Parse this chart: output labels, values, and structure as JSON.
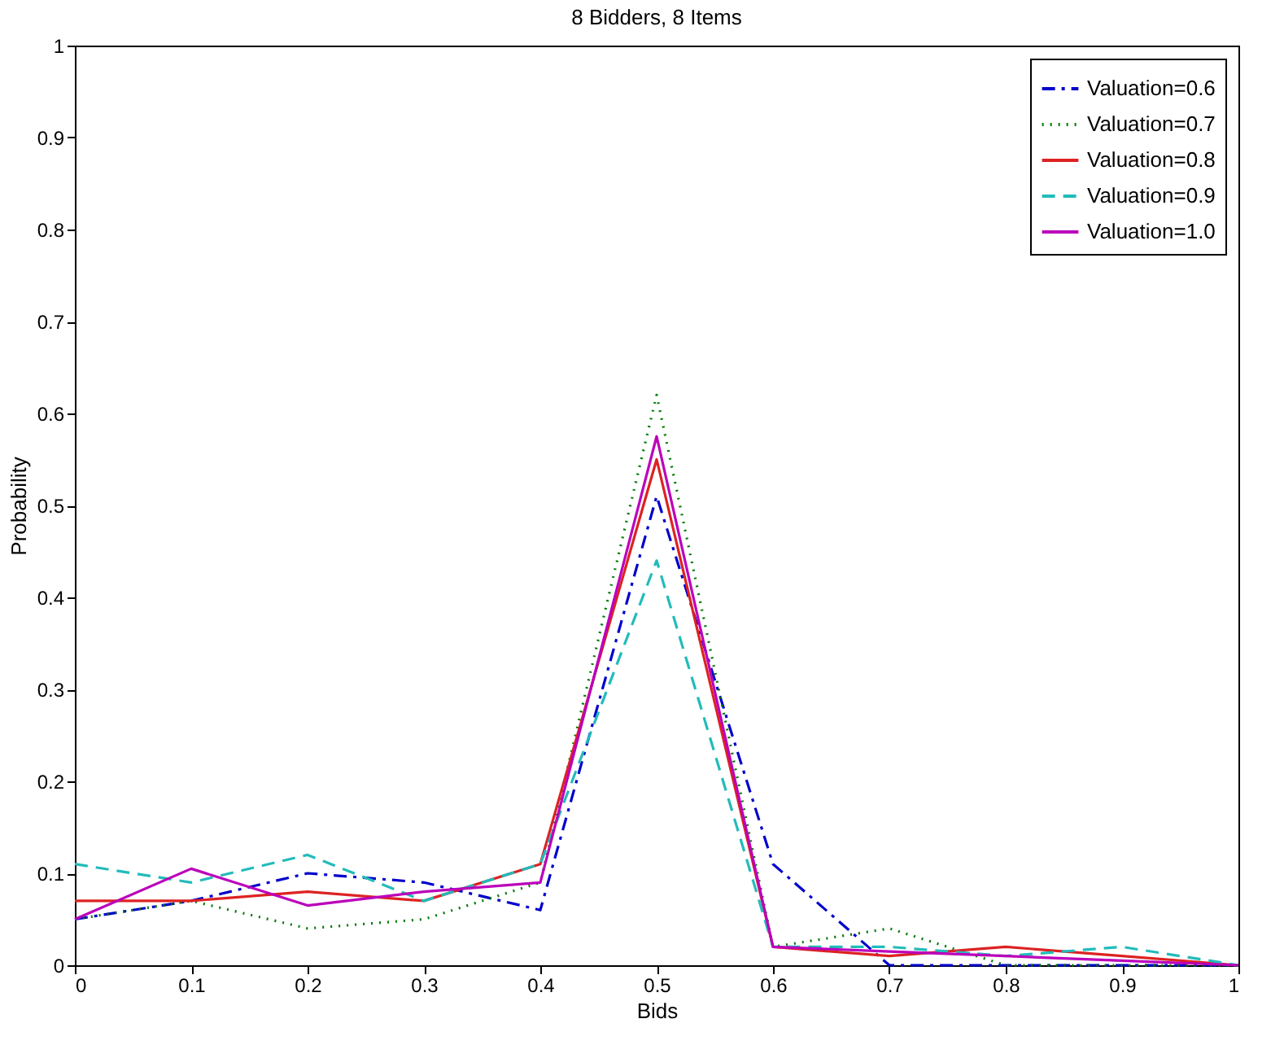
{
  "chart_data": {
    "type": "line",
    "title": "8 Bidders, 8 Items",
    "xlabel": "Bids",
    "ylabel": "Probability",
    "x": [
      0,
      0.1,
      0.2,
      0.3,
      0.4,
      0.5,
      0.6,
      0.7,
      0.8,
      0.9,
      1.0
    ],
    "series": [
      {
        "name": "Valuation=0.6",
        "color": "#0000cc",
        "line_style": "dashdot",
        "values": [
          0.05,
          0.07,
          0.1,
          0.09,
          0.06,
          0.51,
          0.11,
          0.0,
          0.0,
          0.0,
          0.0
        ]
      },
      {
        "name": "Valuation=0.7",
        "color": "#007a00",
        "line_style": "dotted",
        "values": [
          0.05,
          0.07,
          0.04,
          0.05,
          0.09,
          0.62,
          0.02,
          0.04,
          0.0,
          0.0,
          0.0
        ]
      },
      {
        "name": "Valuation=0.8",
        "color": "#dd2222",
        "line_style": "solid",
        "values": [
          0.07,
          0.07,
          0.08,
          0.07,
          0.11,
          0.55,
          0.02,
          0.01,
          0.02,
          0.01,
          0.0
        ]
      },
      {
        "name": "Valuation=0.9",
        "color": "#22bbbb",
        "line_style": "dashed",
        "values": [
          0.11,
          0.09,
          0.12,
          0.07,
          0.11,
          0.44,
          0.02,
          0.02,
          0.01,
          0.02,
          0.0
        ]
      },
      {
        "name": "Valuation=1.0",
        "color": "#bb00bb",
        "line_style": "solid",
        "values": [
          0.05,
          0.105,
          0.065,
          0.08,
          0.09,
          0.575,
          0.02,
          0.015,
          0.01,
          0.005,
          0.0
        ]
      }
    ],
    "xlim": [
      0,
      1
    ],
    "ylim": [
      0,
      1
    ],
    "xticks": [
      0,
      0.1,
      0.2,
      0.3,
      0.4,
      0.5,
      0.6,
      0.7,
      0.8,
      0.9,
      1
    ],
    "yticks": [
      0,
      0.1,
      0.2,
      0.3,
      0.4,
      0.5,
      0.6,
      0.7,
      0.8,
      0.9,
      1
    ],
    "grid": false,
    "legend": "top right",
    "marker": "none"
  }
}
